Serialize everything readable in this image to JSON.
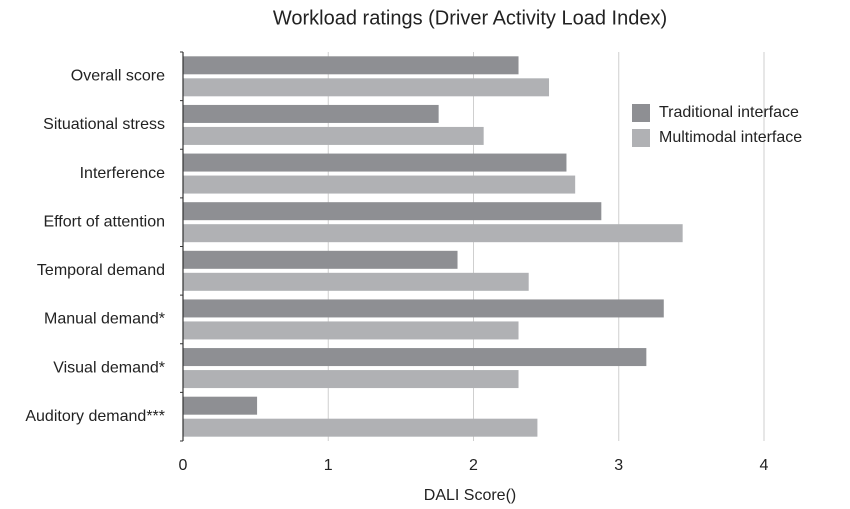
{
  "chart_data": {
    "type": "hbar",
    "title": "Workload ratings (Driver Activity Load Index)",
    "x_label": "DALI Score()",
    "categories": [
      "Overall score",
      "Situational stress",
      "Interference",
      "Effort of attention",
      "Temporal demand",
      "Manual demand*",
      "Visual demand*",
      "Auditory demand***"
    ],
    "series": [
      {
        "name": "Traditional interface",
        "color": "#8e8f93",
        "values": [
          2.31,
          1.76,
          2.64,
          2.88,
          1.89,
          3.31,
          3.19,
          0.51
        ]
      },
      {
        "name": "Multimodal interface",
        "color": "#b0b1b4",
        "values": [
          2.52,
          2.07,
          2.7,
          3.44,
          2.38,
          2.31,
          2.31,
          2.44
        ]
      }
    ],
    "xlim": [
      0,
      4
    ],
    "xticks": [
      0,
      1,
      2,
      3,
      4
    ],
    "grid": true,
    "legend": "upper right"
  }
}
